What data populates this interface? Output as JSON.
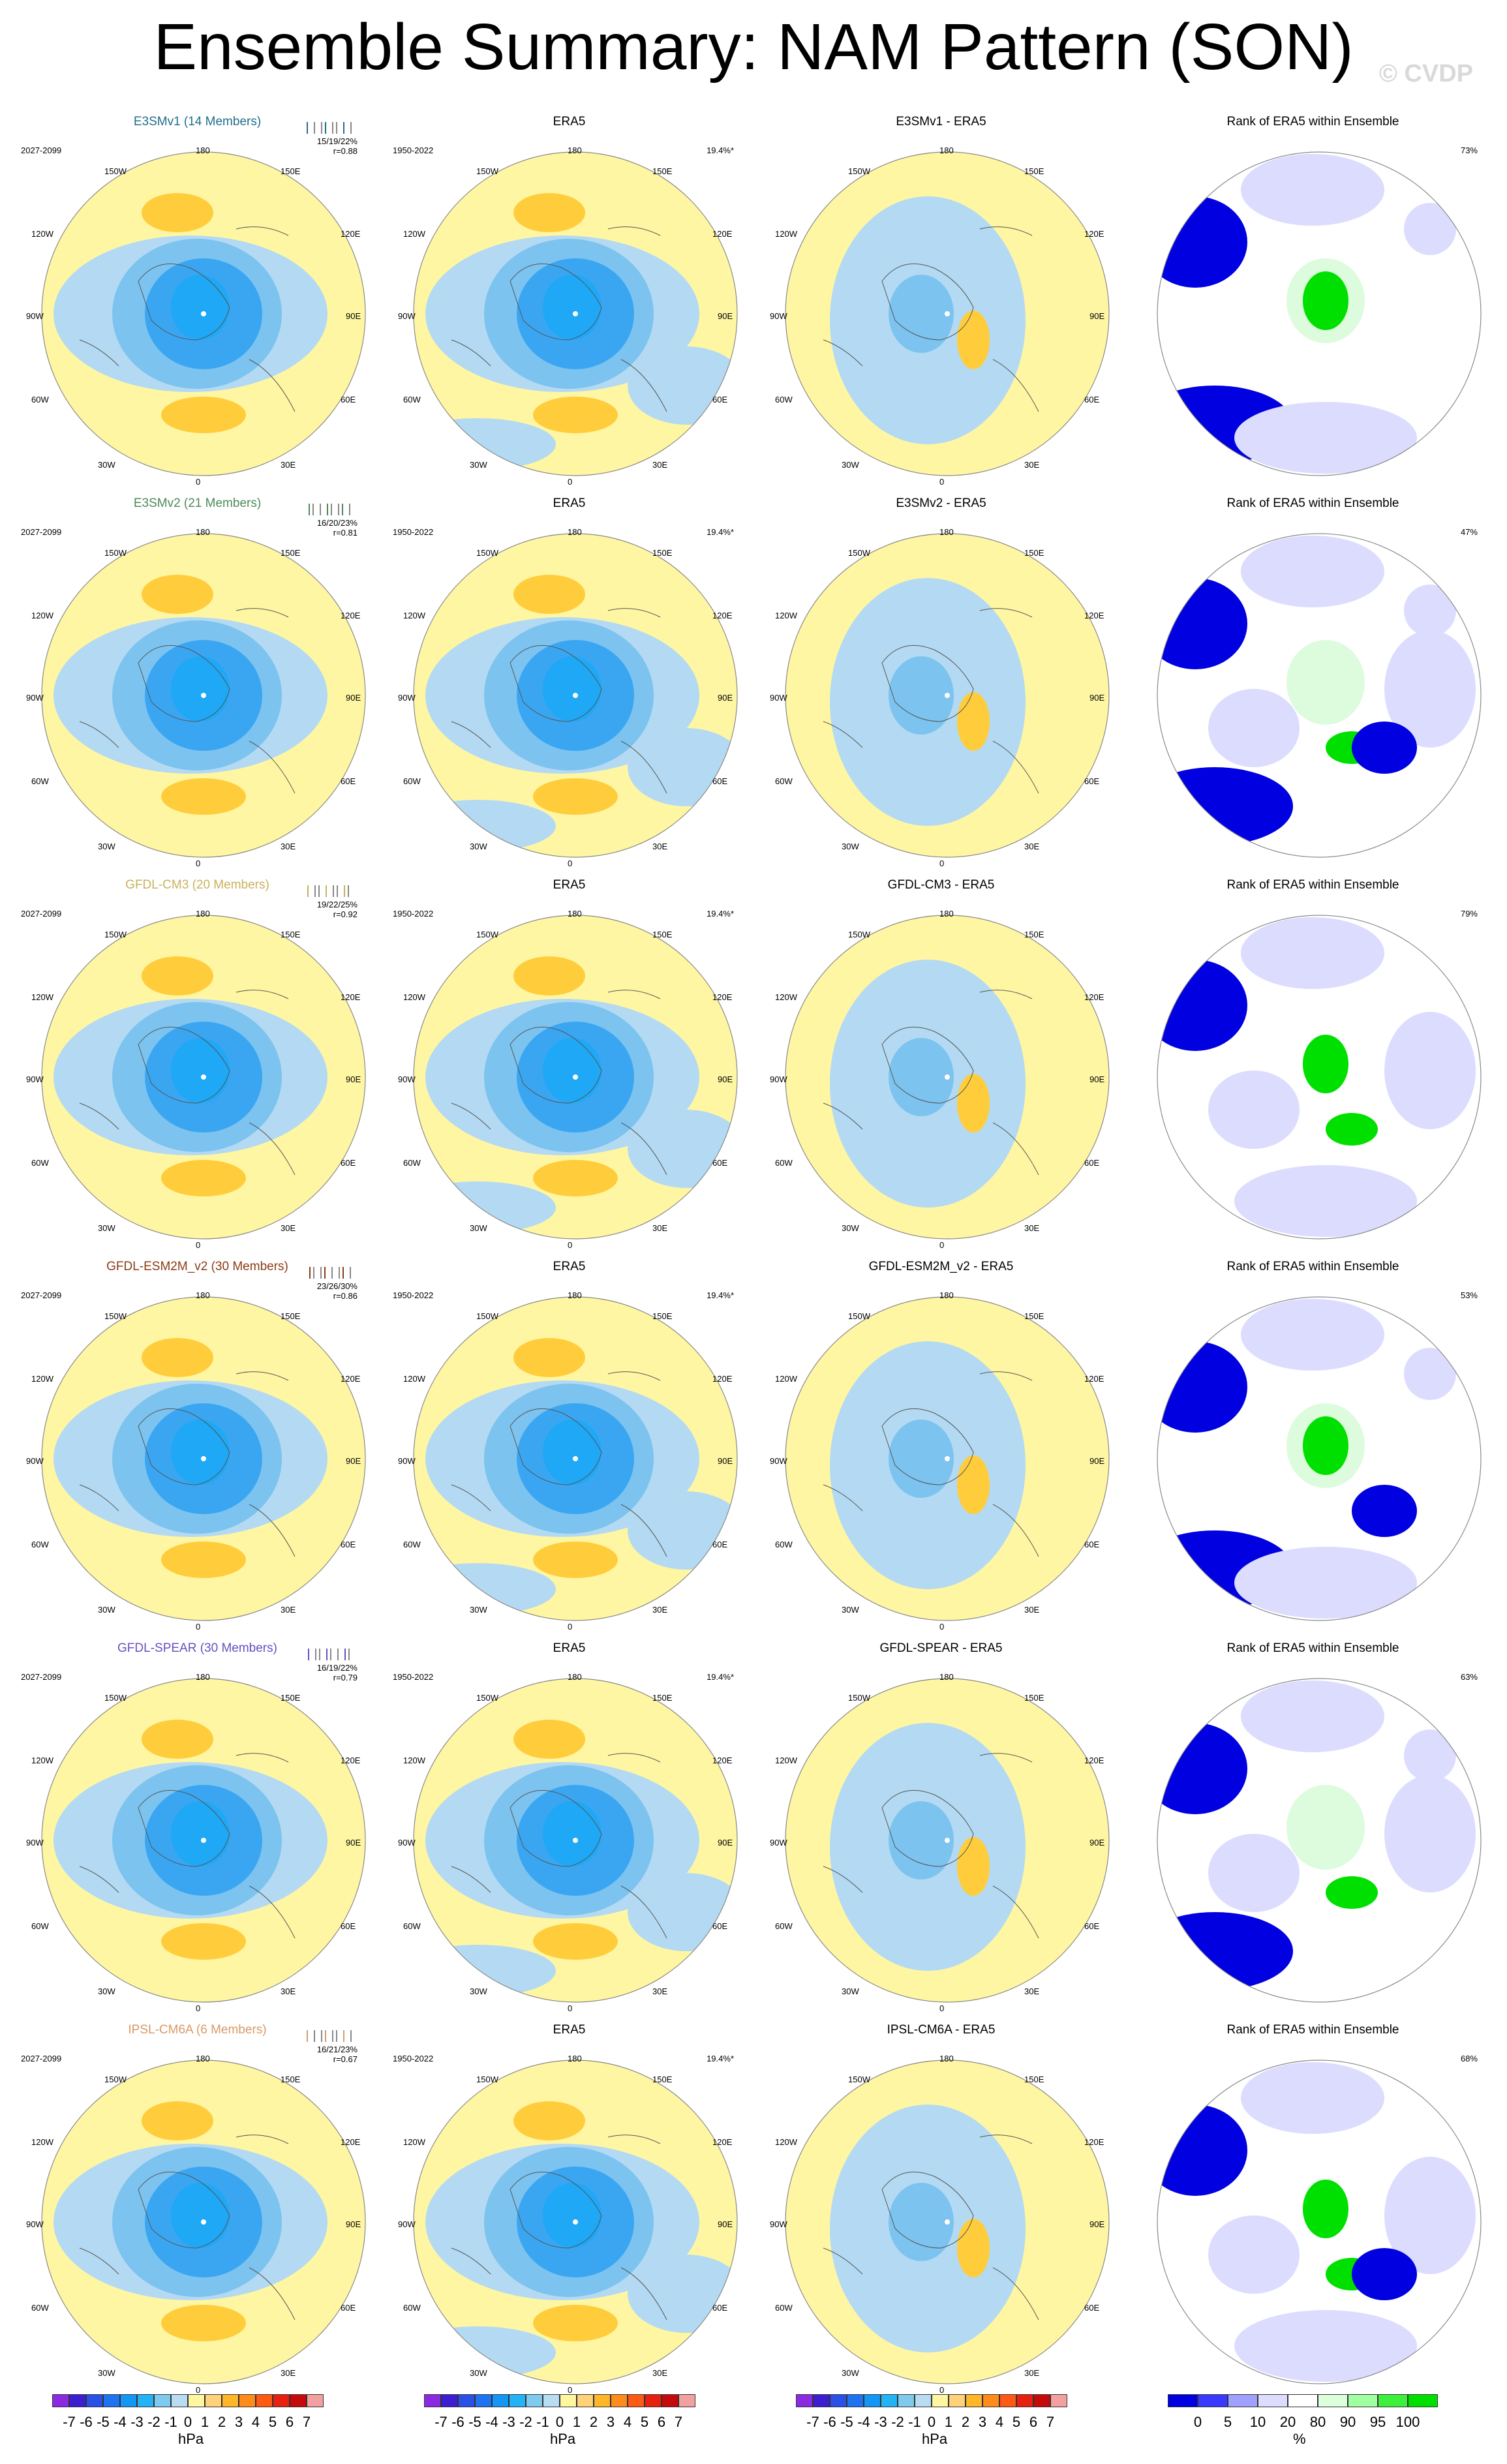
{
  "title": "Ensemble Summary: NAM Pattern (SON)",
  "watermark": "© CVDP",
  "labels": {
    "lon_top": "180",
    "lon_bottom": "0",
    "nw": "150W",
    "ne": "150E",
    "wnw": "120W",
    "ene": "120E",
    "w": "90W",
    "e": "90E",
    "wsw": "60W",
    "ese": "60E",
    "sw": "30W",
    "se": "30E"
  },
  "obs_name": "ERA5",
  "obs_period": "1950-2022",
  "obs_pct": "19.4%*",
  "rank_title": "Rank of ERA5 within Ensemble",
  "rows": [
    {
      "model": "E3SMv1 (14 Members)",
      "model_color": "#1f6e8c",
      "period": "2027-2099",
      "stats": "15/19/22%",
      "r": "r=0.88",
      "diff": "E3SMv1 - ERA5",
      "rank_pct": "73%"
    },
    {
      "model": "E3SMv2 (21 Members)",
      "model_color": "#4c8a5a",
      "period": "2027-2099",
      "stats": "16/20/23%",
      "r": "r=0.81",
      "diff": "E3SMv2 - ERA5",
      "rank_pct": "47%"
    },
    {
      "model": "GFDL-CM3 (20 Members)",
      "model_color": "#c9b15a",
      "period": "2027-2099",
      "stats": "19/22/25%",
      "r": "r=0.92",
      "diff": "GFDL-CM3 - ERA5",
      "rank_pct": "79%"
    },
    {
      "model": "GFDL-ESM2M_v2 (30 Members)",
      "model_color": "#8b3a14",
      "period": "2027-2099",
      "stats": "23/26/30%",
      "r": "r=0.86",
      "diff": "GFDL-ESM2M_v2 - ERA5",
      "rank_pct": "53%"
    },
    {
      "model": "GFDL-SPEAR (30 Members)",
      "model_color": "#6a4fc0",
      "period": "2027-2099",
      "stats": "16/19/22%",
      "r": "r=0.79",
      "diff": "GFDL-SPEAR - ERA5",
      "rank_pct": "63%"
    },
    {
      "model": "IPSL-CM6A (6 Members)",
      "model_color": "#d89a66",
      "period": "2027-2099",
      "stats": "16/21/23%",
      "r": "r=0.67",
      "diff": "IPSL-CM6A - ERA5",
      "rank_pct": "68%"
    }
  ],
  "colorbar_hpa": {
    "labels": [
      "-7",
      "-6",
      "-5",
      "-4",
      "-3",
      "-2",
      "-1",
      "0",
      "1",
      "2",
      "3",
      "4",
      "5",
      "6",
      "7"
    ],
    "unit": "hPa",
    "colors": [
      "#8a2be2",
      "#3b1fd1",
      "#2a50e6",
      "#1e73f0",
      "#1496f5",
      "#22b4f7",
      "#7fcbf0",
      "#b8ddf2",
      "#fff7a0",
      "#ffd27a",
      "#ffb627",
      "#ff8c1a",
      "#ff5a14",
      "#e8200f",
      "#c40a0a",
      "#f2a0a0"
    ]
  },
  "colorbar_pct": {
    "labels": [
      "0",
      "5",
      "10",
      "20",
      "80",
      "90",
      "95",
      "100"
    ],
    "unit": "%",
    "colors": [
      "#0000e0",
      "#3a3aff",
      "#a0a0ff",
      "#dcdcff",
      "#ffffff",
      "#dcffdc",
      "#a0ffa0",
      "#3cf03c",
      "#00e000"
    ]
  },
  "palette": {
    "neg1": "#b3daf2",
    "neg2": "#7cc3f0",
    "neg3": "#3aa6f2",
    "pos1": "#fff6a3",
    "pos2": "#ffcd3c",
    "rank_blue": "#0000e0",
    "rank_light": "#dcdcff",
    "rank_green": "#00e000",
    "rank_lgreen": "#ddfbdd"
  }
}
